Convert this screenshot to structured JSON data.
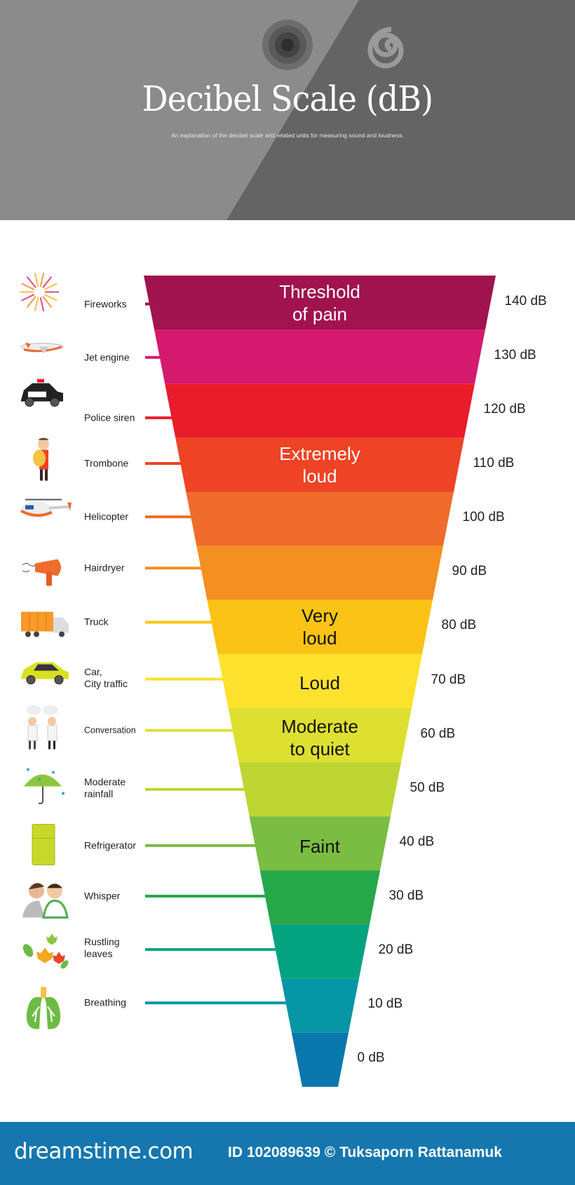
{
  "header": {
    "title": "Decibel Scale (dB)",
    "subtitle": "An explanation of the decibel scale and related units for measuring sound and loudness."
  },
  "chart_data": {
    "type": "funnel",
    "unit": "dB",
    "levels": [
      {
        "value": 140,
        "label": "140 dB",
        "color": "#a0134f",
        "source": "Fireworks",
        "icon": "fireworks-icon"
      },
      {
        "value": 130,
        "label": "130 dB",
        "color": "#d5196e",
        "source": "Jet engine",
        "icon": "airplane-icon"
      },
      {
        "value": 120,
        "label": "120 dB",
        "color": "#e81c2a",
        "source": "Police siren",
        "icon": "police-car-icon"
      },
      {
        "value": 110,
        "label": "110 dB",
        "color": "#ee4324",
        "source": "Trombone",
        "icon": "trombone-player-icon"
      },
      {
        "value": 100,
        "label": "100 dB",
        "color": "#f06c2c",
        "source": "Helicopter",
        "icon": "helicopter-icon"
      },
      {
        "value": 90,
        "label": "90 dB",
        "color": "#f48f21",
        "source": "Hairdryer",
        "icon": "hairdryer-icon"
      },
      {
        "value": 80,
        "label": "80 dB",
        "color": "#fbc315",
        "source": "Truck",
        "icon": "truck-icon"
      },
      {
        "value": 70,
        "label": "70 dB",
        "color": "#ffe22e",
        "source": "Car,\nCity traffic",
        "icon": "car-icon"
      },
      {
        "value": 60,
        "label": "60 dB",
        "color": "#dde031",
        "source": "Conversation",
        "icon": "conversation-icon"
      },
      {
        "value": 50,
        "label": "50 dB",
        "color": "#bdd632",
        "source": "Moderate\nrainfall",
        "icon": "umbrella-rain-icon"
      },
      {
        "value": 40,
        "label": "40 dB",
        "color": "#7bbd42",
        "source": "Refrigerator",
        "icon": "refrigerator-icon"
      },
      {
        "value": 30,
        "label": "30 dB",
        "color": "#26a84a",
        "source": "Whisper",
        "icon": "whisper-icon"
      },
      {
        "value": 20,
        "label": "20 dB",
        "color": "#03a37f",
        "source": "Rustling\nleaves",
        "icon": "leaves-icon"
      },
      {
        "value": 10,
        "label": "10 dB",
        "color": "#0696a6",
        "source": "Breathing",
        "icon": "lungs-icon"
      },
      {
        "value": 0,
        "label": "0 dB",
        "color": "#0a78ac",
        "source": "",
        "icon": ""
      }
    ],
    "categories": [
      {
        "text": "Threshold\nof pain",
        "level": 140,
        "text_color": "#ffffff"
      },
      {
        "text": "Extremely\nloud",
        "level": 110,
        "text_color": "#ffffff"
      },
      {
        "text": "Very\nloud",
        "level": 80,
        "text_color": "#111111"
      },
      {
        "text": "Loud",
        "level": 70,
        "text_color": "#111111"
      },
      {
        "text": "Moderate\nto quiet",
        "level": 60,
        "text_color": "#111111"
      },
      {
        "text": "Faint",
        "level": 40,
        "text_color": "#111111"
      }
    ]
  },
  "footer": {
    "logo": "dreamstime.com",
    "credit": "ID 102089639 © Tuksaporn Rattanamuk",
    "color": "#1577ae"
  }
}
